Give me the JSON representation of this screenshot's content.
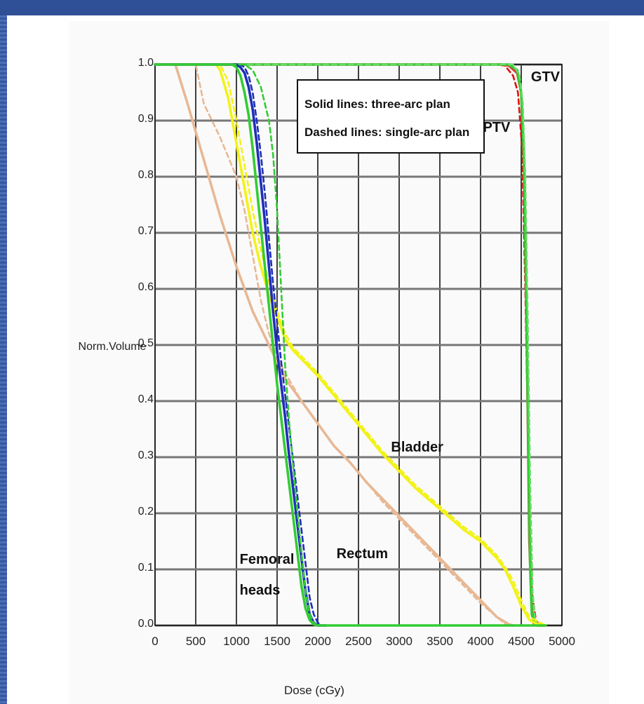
{
  "slide": {
    "background": "#ffffff",
    "frame_color": "#3b5fa6"
  },
  "chart_data": {
    "type": "line",
    "title": "",
    "xlabel": "Dose (cGy)",
    "ylabel": "Norm.Volume",
    "xlim": [
      0,
      5000
    ],
    "ylim": [
      0,
      1
    ],
    "x_ticks": [
      0,
      500,
      1000,
      1500,
      2000,
      2500,
      3000,
      3500,
      4000,
      4500,
      5000
    ],
    "x_tick_labels": [
      "0",
      "500",
      "1000",
      "1500",
      "2000",
      "2500",
      "3000",
      "3500",
      "4000",
      "4500",
      "5000"
    ],
    "y_ticks": [
      0,
      0.1,
      0.2,
      0.3,
      0.4,
      0.5,
      0.6,
      0.7,
      0.8,
      0.9,
      1.0
    ],
    "y_tick_labels": [
      "0.0",
      "0.1",
      "0.2",
      "0.3",
      "0.4",
      "0.5",
      "0.6",
      "0.7",
      "0.8",
      "0.9",
      "1.0"
    ],
    "grid": true,
    "legend": {
      "placement": "top-center",
      "lines": [
        "Solid lines: three-arc plan",
        "Dashed lines: single-arc plan"
      ]
    },
    "annotations": [
      {
        "text": "GTV",
        "x": 4620,
        "y": 0.97
      },
      {
        "text": "PTV",
        "x": 4030,
        "y": 0.88
      },
      {
        "text": "Bladder",
        "x": 2900,
        "y": 0.31
      },
      {
        "text": "Rectum",
        "x": 2230,
        "y": 0.12
      },
      {
        "text": "Femoral",
        "x": 1040,
        "y": 0.11
      },
      {
        "text": "heads",
        "x": 1040,
        "y": 0.055
      }
    ],
    "series": [
      {
        "structure": "PTV",
        "plan": "three-arc",
        "dash": false,
        "color": "#dd3333",
        "x": [
          0,
          4250,
          4350,
          4450,
          4500,
          4540,
          4570,
          4600,
          4630,
          4650,
          4700,
          4800
        ],
        "y": [
          1,
          1,
          0.998,
          0.985,
          0.95,
          0.8,
          0.5,
          0.15,
          0.03,
          0.005,
          0,
          0
        ]
      },
      {
        "structure": "PTV",
        "plan": "single-arc",
        "dash": true,
        "color": "#dd1111",
        "x": [
          0,
          4200,
          4300,
          4400,
          4460,
          4510,
          4550,
          4600,
          4640,
          4680,
          4720,
          4800
        ],
        "y": [
          1,
          1,
          0.998,
          0.98,
          0.95,
          0.85,
          0.6,
          0.2,
          0.05,
          0.01,
          0,
          0
        ]
      },
      {
        "structure": "GTV",
        "plan": "three-arc",
        "dash": false,
        "color": "#33cc33",
        "x": [
          0,
          4350,
          4450,
          4500,
          4530,
          4560,
          4590,
          4610,
          4630,
          4660,
          4700,
          4800
        ],
        "y": [
          1,
          1,
          0.99,
          0.95,
          0.85,
          0.6,
          0.3,
          0.1,
          0.02,
          0.005,
          0,
          0
        ]
      },
      {
        "structure": "GTV",
        "plan": "single-arc",
        "dash": true,
        "color": "#66dd66",
        "x": [
          0,
          4400,
          4480,
          4520,
          4550,
          4580,
          4610,
          4640,
          4670,
          4720,
          4800
        ],
        "y": [
          1,
          1,
          0.98,
          0.93,
          0.8,
          0.55,
          0.25,
          0.06,
          0.01,
          0,
          0
        ]
      },
      {
        "structure": "Bladder",
        "plan": "three-arc",
        "dash": false,
        "color": "#f2f21a",
        "x": [
          0,
          750,
          800,
          900,
          1000,
          1100,
          1200,
          1300,
          1400,
          1500,
          1600,
          1700,
          1800,
          1900,
          2000,
          2200,
          2400,
          2600,
          2800,
          3000,
          3200,
          3400,
          3600,
          3800,
          4000,
          4200,
          4300,
          4400,
          4500,
          4600,
          4700,
          4800
        ],
        "y": [
          1,
          1,
          0.99,
          0.94,
          0.86,
          0.78,
          0.7,
          0.64,
          0.59,
          0.55,
          0.51,
          0.49,
          0.475,
          0.46,
          0.445,
          0.41,
          0.375,
          0.34,
          0.305,
          0.275,
          0.245,
          0.22,
          0.195,
          0.17,
          0.15,
          0.12,
          0.1,
          0.07,
          0.035,
          0.01,
          0.002,
          0
        ]
      },
      {
        "structure": "Bladder",
        "plan": "single-arc",
        "dash": true,
        "color": "#f2f21a",
        "x": [
          0,
          800,
          900,
          1000,
          1100,
          1200,
          1300,
          1400,
          1500,
          1600,
          1700,
          1800,
          2000,
          2200,
          2400,
          2600,
          2800,
          3000,
          3200,
          3400,
          3600,
          3800,
          4000,
          4200,
          4300,
          4400,
          4500,
          4600,
          4800
        ],
        "y": [
          1,
          1,
          0.97,
          0.9,
          0.82,
          0.74,
          0.67,
          0.61,
          0.56,
          0.52,
          0.495,
          0.48,
          0.45,
          0.415,
          0.38,
          0.345,
          0.31,
          0.28,
          0.25,
          0.225,
          0.2,
          0.175,
          0.155,
          0.125,
          0.105,
          0.08,
          0.045,
          0.015,
          0
        ]
      },
      {
        "structure": "Rectum",
        "plan": "three-arc",
        "dash": false,
        "color": "#e8b894",
        "x": [
          0,
          250,
          400,
          600,
          800,
          1000,
          1200,
          1400,
          1600,
          1800,
          2000,
          2200,
          2400,
          2600,
          2800,
          3000,
          3200,
          3400,
          3600,
          3800,
          4000,
          4200,
          4350,
          4400
        ],
        "y": [
          1,
          1,
          0.93,
          0.83,
          0.73,
          0.64,
          0.56,
          0.5,
          0.44,
          0.4,
          0.36,
          0.32,
          0.29,
          0.255,
          0.225,
          0.195,
          0.165,
          0.135,
          0.105,
          0.075,
          0.045,
          0.015,
          0.002,
          0
        ]
      },
      {
        "structure": "Rectum",
        "plan": "single-arc",
        "dash": true,
        "color": "#e8b894",
        "x": [
          0,
          500,
          600,
          800,
          1000,
          1100,
          1200,
          1300,
          1400,
          1500,
          1600,
          1800,
          2000,
          2200,
          2400,
          2600,
          2800,
          3000,
          3200,
          3400,
          3600,
          3800,
          4000,
          4200,
          4300,
          4350
        ],
        "y": [
          1,
          1,
          0.93,
          0.87,
          0.8,
          0.74,
          0.66,
          0.58,
          0.52,
          0.48,
          0.45,
          0.4,
          0.36,
          0.32,
          0.29,
          0.255,
          0.22,
          0.19,
          0.16,
          0.13,
          0.1,
          0.07,
          0.04,
          0.015,
          0.003,
          0
        ]
      },
      {
        "structure": "Femoral heads",
        "plan": "three-arc",
        "dash": false,
        "color": "#1f2fb8",
        "x": [
          0,
          1000,
          1050,
          1100,
          1150,
          1200,
          1250,
          1300,
          1350,
          1400,
          1450,
          1500,
          1550,
          1600,
          1650,
          1700,
          1750,
          1800,
          1850,
          1900,
          1950,
          2000,
          2100
        ],
        "y": [
          1,
          1,
          0.995,
          0.985,
          0.96,
          0.92,
          0.86,
          0.79,
          0.72,
          0.64,
          0.56,
          0.49,
          0.43,
          0.37,
          0.3,
          0.24,
          0.18,
          0.12,
          0.06,
          0.02,
          0.005,
          0,
          0
        ]
      },
      {
        "structure": "Femoral heads",
        "plan": "single-arc",
        "dash": true,
        "color": "#1f2fb8",
        "x": [
          0,
          1050,
          1100,
          1150,
          1200,
          1250,
          1300,
          1350,
          1400,
          1450,
          1500,
          1550,
          1600,
          1650,
          1700,
          1750,
          1800,
          1850,
          1900,
          1950,
          2000,
          2050,
          2100
        ],
        "y": [
          1,
          1,
          0.995,
          0.98,
          0.95,
          0.9,
          0.84,
          0.77,
          0.69,
          0.61,
          0.54,
          0.47,
          0.41,
          0.35,
          0.29,
          0.23,
          0.17,
          0.11,
          0.05,
          0.02,
          0.005,
          0,
          0
        ]
      },
      {
        "structure": "Femoral heads",
        "plan": "three-arc",
        "dash": false,
        "color": "#33cc33",
        "x": [
          0,
          950,
          1000,
          1050,
          1100,
          1150,
          1200,
          1250,
          1300,
          1350,
          1400,
          1450,
          1500,
          1550,
          1600,
          1650,
          1700,
          1750,
          1800,
          1850,
          1900,
          1950,
          2000,
          2100,
          4800
        ],
        "y": [
          1,
          1,
          0.995,
          0.98,
          0.95,
          0.91,
          0.85,
          0.78,
          0.71,
          0.64,
          0.57,
          0.5,
          0.43,
          0.37,
          0.31,
          0.25,
          0.19,
          0.13,
          0.07,
          0.03,
          0.01,
          0.002,
          0,
          0,
          0
        ]
      },
      {
        "structure": "Femoral heads",
        "plan": "single-arc",
        "dash": true,
        "color": "#33cc33",
        "x": [
          0,
          1100,
          1200,
          1300,
          1400,
          1450,
          1500,
          1550,
          1600,
          1650,
          1700,
          1750,
          1800,
          1850,
          1900,
          1950,
          2000,
          2100
        ],
        "y": [
          1,
          1,
          0.99,
          0.96,
          0.9,
          0.84,
          0.74,
          0.6,
          0.46,
          0.36,
          0.28,
          0.2,
          0.13,
          0.06,
          0.02,
          0.005,
          0,
          0
        ]
      }
    ]
  }
}
